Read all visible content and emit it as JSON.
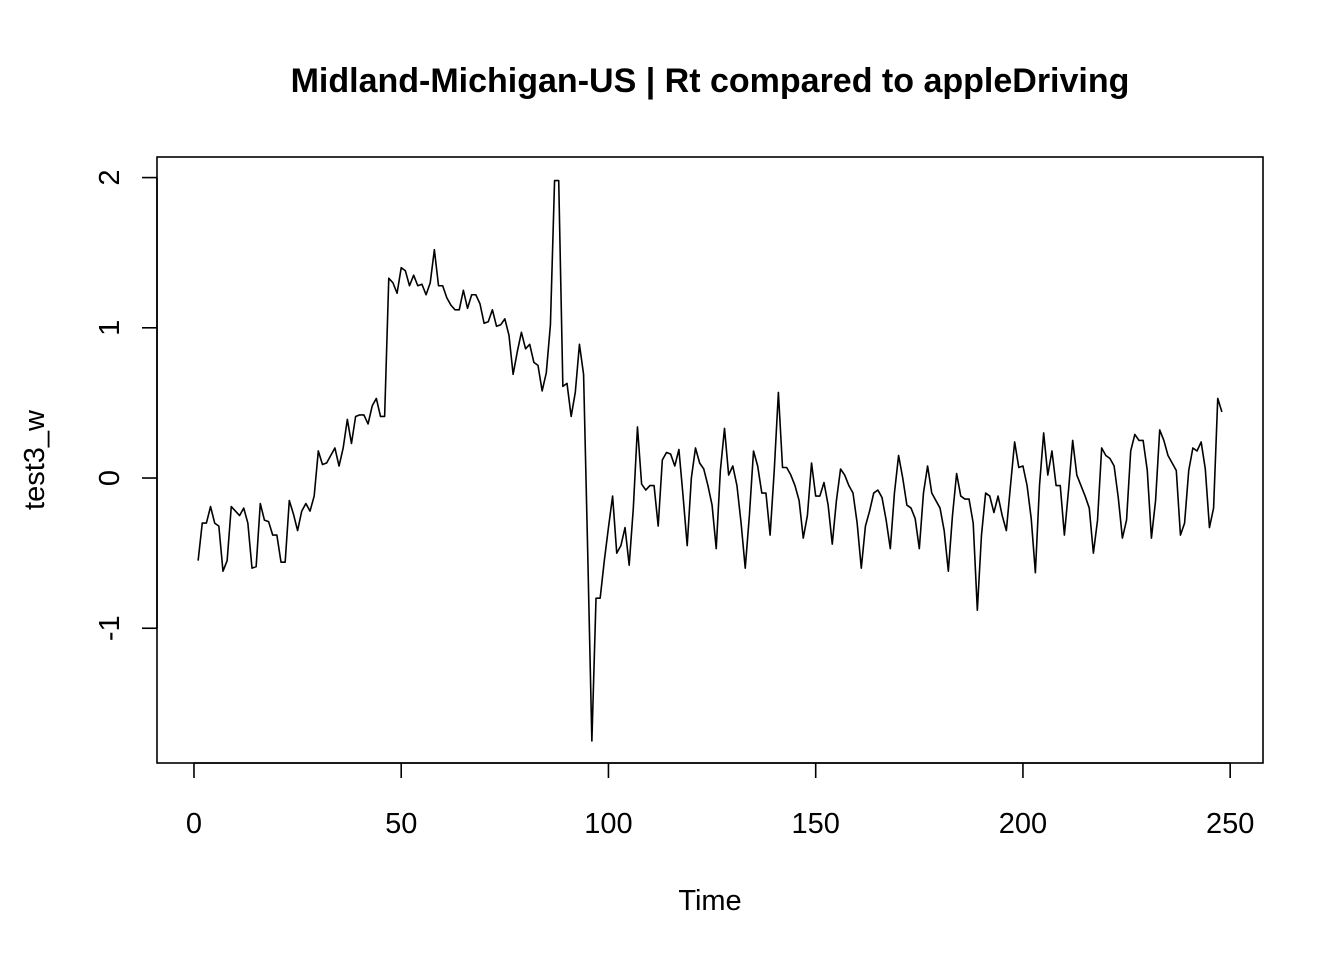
{
  "chart_data": {
    "type": "line",
    "title": "Midland-Michigan-US | Rt compared to appleDriving",
    "xlabel": "Time",
    "ylabel": "test3_w",
    "xlim": [
      -8.92,
      257.92
    ],
    "ylim": [
      -1.897,
      2.137
    ],
    "x_ticks": [
      0,
      50,
      100,
      150,
      200,
      250
    ],
    "y_ticks": [
      -1,
      0,
      1,
      2
    ],
    "x_tick_labels": [
      "0",
      "50",
      "100",
      "150",
      "200",
      "250"
    ],
    "y_tick_labels": [
      "-1",
      "0",
      "1",
      "2"
    ],
    "line_color": "#000000",
    "x_start": 1,
    "series": [
      {
        "values": [
          -0.55,
          -0.3,
          -0.3,
          -0.19,
          -0.3,
          -0.32,
          -0.62,
          -0.55,
          -0.19,
          -0.22,
          -0.25,
          -0.2,
          -0.3,
          -0.6,
          -0.59,
          -0.17,
          -0.28,
          -0.29,
          -0.38,
          -0.38,
          -0.56,
          -0.56,
          -0.15,
          -0.24,
          -0.35,
          -0.22,
          -0.17,
          -0.22,
          -0.12,
          0.18,
          0.09,
          0.1,
          0.15,
          0.2,
          0.08,
          0.2,
          0.39,
          0.23,
          0.41,
          0.42,
          0.42,
          0.36,
          0.48,
          0.53,
          0.41,
          0.41,
          1.33,
          1.3,
          1.23,
          1.4,
          1.38,
          1.28,
          1.35,
          1.28,
          1.29,
          1.22,
          1.3,
          1.52,
          1.28,
          1.28,
          1.2,
          1.15,
          1.12,
          1.12,
          1.25,
          1.13,
          1.22,
          1.22,
          1.16,
          1.03,
          1.04,
          1.12,
          1.01,
          1.02,
          1.06,
          0.95,
          0.69,
          0.84,
          0.97,
          0.86,
          0.89,
          0.77,
          0.75,
          0.58,
          0.7,
          1.02,
          1.98,
          1.98,
          0.61,
          0.63,
          0.41,
          0.57,
          0.89,
          0.69,
          -0.5,
          -1.75,
          -0.8,
          -0.8,
          -0.55,
          -0.33,
          -0.12,
          -0.5,
          -0.45,
          -0.33,
          -0.58,
          -0.2,
          0.34,
          -0.04,
          -0.08,
          -0.05,
          -0.05,
          -0.32,
          0.12,
          0.17,
          0.16,
          0.08,
          0.19,
          -0.12,
          -0.45,
          0.0,
          0.2,
          0.1,
          0.06,
          -0.05,
          -0.18,
          -0.47,
          0.05,
          0.33,
          0.02,
          0.08,
          -0.05,
          -0.3,
          -0.6,
          -0.25,
          0.18,
          0.08,
          -0.1,
          -0.1,
          -0.38,
          0.05,
          0.57,
          0.07,
          0.07,
          0.02,
          -0.05,
          -0.15,
          -0.4,
          -0.25,
          0.1,
          -0.12,
          -0.12,
          -0.03,
          -0.18,
          -0.44,
          -0.15,
          0.06,
          0.02,
          -0.05,
          -0.1,
          -0.3,
          -0.6,
          -0.32,
          -0.22,
          -0.1,
          -0.08,
          -0.13,
          -0.28,
          -0.47,
          -0.1,
          0.15,
          0.0,
          -0.18,
          -0.2,
          -0.27,
          -0.47,
          -0.1,
          0.08,
          -0.1,
          -0.15,
          -0.2,
          -0.35,
          -0.62,
          -0.25,
          0.03,
          -0.12,
          -0.14,
          -0.14,
          -0.3,
          -0.88,
          -0.38,
          -0.1,
          -0.12,
          -0.23,
          -0.12,
          -0.25,
          -0.35,
          -0.05,
          0.24,
          0.07,
          0.08,
          -0.05,
          -0.27,
          -0.63,
          -0.05,
          0.3,
          0.02,
          0.18,
          -0.05,
          -0.05,
          -0.38,
          -0.08,
          0.25,
          0.02,
          -0.05,
          -0.12,
          -0.2,
          -0.5,
          -0.28,
          0.2,
          0.15,
          0.13,
          0.08,
          -0.13,
          -0.4,
          -0.28,
          0.18,
          0.29,
          0.25,
          0.25,
          0.05,
          -0.4,
          -0.15,
          0.32,
          0.25,
          0.15,
          0.1,
          0.05,
          -0.38,
          -0.3,
          0.05,
          0.2,
          0.18,
          0.24,
          0.06,
          -0.33,
          -0.2,
          0.53,
          0.44
        ]
      }
    ]
  }
}
